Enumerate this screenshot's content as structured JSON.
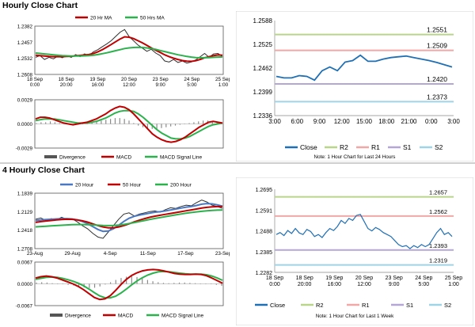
{
  "sections": [
    {
      "title": "Hourly Close Chart"
    },
    {
      "title": "4 Hourly Close Chart"
    }
  ],
  "colors": {
    "price": "#2f2f2f",
    "ma_red": "#c00000",
    "ma_green": "#2bb24c",
    "ma_blue": "#4a78c2",
    "close": "#1f6fb5",
    "r2": "#b8d58a",
    "r1": "#f2a7a7",
    "s1": "#b4a7d6",
    "s2": "#9fd3e6",
    "hist": "#8a8a8a"
  },
  "chart_data": [
    {
      "id": "hourly_price",
      "type": "line",
      "legend": [
        "20 Hr MA",
        "50 Hrs MA"
      ],
      "x_ticks": [
        [
          "18 Sep",
          "0:00"
        ],
        [
          "18 Sep",
          "20:00"
        ],
        [
          "19 Sep",
          "16:00"
        ],
        [
          "20 Sep",
          "12:00"
        ],
        [
          "23 Sep",
          "9:00"
        ],
        [
          "24 Sep",
          "5:00"
        ],
        [
          "25 Sep",
          "1:00"
        ]
      ],
      "y_ticks": [
        "1.2608",
        "1.2532",
        "1.2457",
        "1.2382"
      ],
      "ylim": [
        1.2382,
        1.2608
      ],
      "series": [
        {
          "name": "price",
          "values": [
            1.2462,
            1.247,
            1.2452,
            1.2462,
            1.2455,
            1.2468,
            1.246,
            1.247,
            1.2462,
            1.2475,
            1.2465,
            1.2478,
            1.247,
            1.2488,
            1.2498,
            1.2512,
            1.2525,
            1.254,
            1.256,
            1.258,
            1.2592,
            1.256,
            1.254,
            1.252,
            1.2505,
            1.249,
            1.25,
            1.2482,
            1.247,
            1.2445,
            1.244,
            1.2452,
            1.2438,
            1.2445,
            1.2435,
            1.244,
            1.245,
            1.2465,
            1.248,
            1.2462,
            1.2478,
            1.248,
            1.2465
          ]
        },
        {
          "name": "20 Hr MA",
          "values": [
            1.2472,
            1.247,
            1.2468,
            1.2466,
            1.2465,
            1.2465,
            1.2465,
            1.2466,
            1.2467,
            1.2469,
            1.2471,
            1.2473,
            1.2475,
            1.248,
            1.2488,
            1.2498,
            1.251,
            1.2522,
            1.2535,
            1.2548,
            1.2558,
            1.2556,
            1.255,
            1.254,
            1.253,
            1.2518,
            1.2506,
            1.2495,
            1.2485,
            1.2474,
            1.2465,
            1.2458,
            1.2452,
            1.2447,
            1.2444,
            1.2443,
            1.2446,
            1.2452,
            1.246,
            1.2465,
            1.247,
            1.2473,
            1.2472
          ]
        },
        {
          "name": "50 Hrs MA",
          "values": [
            1.2482,
            1.248,
            1.2478,
            1.2476,
            1.2474,
            1.2472,
            1.247,
            1.2469,
            1.2468,
            1.2468,
            1.2468,
            1.2469,
            1.247,
            1.2472,
            1.2475,
            1.2479,
            1.2483,
            1.2488,
            1.2493,
            1.2498,
            1.2503,
            1.2506,
            1.2508,
            1.2509,
            1.2508,
            1.2506,
            1.2503,
            1.2499,
            1.2494,
            1.2489,
            1.2484,
            1.2479,
            1.2474,
            1.247,
            1.2466,
            1.2463,
            1.2461,
            1.246,
            1.246,
            1.2461,
            1.2462,
            1.2463,
            1.2464
          ]
        }
      ]
    },
    {
      "id": "hourly_macd",
      "type": "line",
      "legend": [
        "Divergence",
        "MACD",
        "MACD Signal Line"
      ],
      "y_ticks": [
        "0.0029",
        "0.0000",
        "-0.0029"
      ],
      "ylim": [
        -0.0029,
        0.0029
      ],
      "histogram": [
        0.0001,
        0.0002,
        0.0002,
        0.0003,
        0.0002,
        0.0001,
        0.0001,
        0.0,
        -0.0001,
        -0.0001,
        0.0,
        0.0001,
        0.0002,
        0.0003,
        0.0004,
        0.0005,
        0.0006,
        0.0007,
        0.0007,
        0.0006,
        0.0004,
        0.0001,
        -0.0002,
        -0.0004,
        -0.0005,
        -0.0006,
        -0.0006,
        -0.0005,
        -0.0004,
        -0.0003,
        -0.0002,
        -0.0001,
        0.0,
        0.0001,
        0.0002,
        0.0003,
        0.0004,
        0.0004,
        0.0003,
        0.0002,
        0.0001
      ],
      "series": [
        {
          "name": "MACD",
          "values": [
            0.0006,
            0.0008,
            0.0008,
            0.0007,
            0.0005,
            0.0003,
            0.0001,
            0.0,
            -0.0001,
            0.0,
            0.0001,
            0.0002,
            0.0004,
            0.0006,
            0.0009,
            0.0012,
            0.0016,
            0.0019,
            0.0021,
            0.002,
            0.0017,
            0.0012,
            0.0006,
            0.0,
            -0.0006,
            -0.0012,
            -0.0016,
            -0.0019,
            -0.0021,
            -0.0022,
            -0.0021,
            -0.0019,
            -0.0016,
            -0.0012,
            -0.0008,
            -0.0004,
            -0.0001,
            0.0002,
            0.0003,
            0.0002,
            0.0001
          ]
        },
        {
          "name": "MACD Signal Line",
          "values": [
            0.0004,
            0.0005,
            0.0006,
            0.0006,
            0.0006,
            0.0005,
            0.0004,
            0.0003,
            0.0002,
            0.0001,
            0.0001,
            0.0001,
            0.0002,
            0.0003,
            0.0005,
            0.0007,
            0.001,
            0.0013,
            0.0015,
            0.0016,
            0.0016,
            0.0015,
            0.0012,
            0.0008,
            0.0003,
            -0.0002,
            -0.0007,
            -0.0011,
            -0.0014,
            -0.0017,
            -0.0018,
            -0.0018,
            -0.0017,
            -0.0015,
            -0.0012,
            -0.0009,
            -0.0006,
            -0.0003,
            -0.0001,
            0.0,
            0.0001
          ]
        }
      ]
    },
    {
      "id": "hourly_levels",
      "type": "line",
      "x_ticks": [
        "3:00",
        "6:00",
        "9:00",
        "12:00",
        "15:00",
        "18:00",
        "21:00",
        "0:00",
        "3:00"
      ],
      "y_ticks": [
        "1.2588",
        "1.2525",
        "1.2462",
        "1.2399",
        "1.2336"
      ],
      "ylim": [
        1.2336,
        1.2588
      ],
      "levels": [
        {
          "name": "R2",
          "value": 1.2551,
          "label": "1.2551"
        },
        {
          "name": "R1",
          "value": 1.2509,
          "label": "1.2509"
        },
        {
          "name": "S1",
          "value": 1.242,
          "label": "1.2420"
        },
        {
          "name": "S2",
          "value": 1.2373,
          "label": "1.2373"
        }
      ],
      "series": [
        {
          "name": "Close",
          "values": [
            1.244,
            1.2436,
            1.2436,
            1.2442,
            1.244,
            1.243,
            1.2455,
            1.2465,
            1.2455,
            1.2478,
            1.2482,
            1.2496,
            1.248,
            1.248,
            1.2486,
            1.249,
            1.2492,
            1.2494,
            1.249,
            1.2486,
            1.2482,
            1.2477,
            1.2471,
            1.2465
          ]
        }
      ],
      "legend": [
        "Close",
        "R2",
        "R1",
        "S1",
        "S2"
      ],
      "note": "Note: 1 Hour Chart for Last 24 Hours"
    },
    {
      "id": "four_hourly_price",
      "type": "line",
      "legend": [
        "20 Hour",
        "50 Hour",
        "200 Hour"
      ],
      "x_ticks": [
        "23-Aug",
        "29-Aug",
        "4-Sep",
        "11-Sep",
        "17-Sep",
        "23-Sep"
      ],
      "y_ticks": [
        "1.2708",
        "1.2418",
        "1.2129",
        "1.1839"
      ],
      "ylim": [
        1.1839,
        1.2708
      ],
      "series": [
        {
          "name": "price",
          "values": [
            1.23,
            1.232,
            1.228,
            1.231,
            1.229,
            1.233,
            1.23,
            1.231,
            1.226,
            1.22,
            1.215,
            1.208,
            1.202,
            1.2,
            1.21,
            1.22,
            1.23,
            1.238,
            1.24,
            1.235,
            1.238,
            1.24,
            1.242,
            1.243,
            1.241,
            1.245,
            1.248,
            1.247,
            1.25,
            1.252,
            1.251,
            1.256,
            1.26,
            1.257,
            1.252,
            1.25,
            1.247
          ]
        },
        {
          "name": "20 Hour",
          "values": [
            1.228,
            1.229,
            1.2295,
            1.23,
            1.2305,
            1.231,
            1.231,
            1.2305,
            1.229,
            1.2265,
            1.223,
            1.2185,
            1.214,
            1.211,
            1.2115,
            1.215,
            1.2205,
            1.2265,
            1.2315,
            1.2345,
            1.2365,
            1.238,
            1.2395,
            1.241,
            1.2418,
            1.243,
            1.2445,
            1.246,
            1.2475,
            1.249,
            1.25,
            1.2515,
            1.2535,
            1.2545,
            1.254,
            1.2525,
            1.2505
          ]
        },
        {
          "name": "50 Hour",
          "values": [
            1.225,
            1.2262,
            1.2272,
            1.228,
            1.2288,
            1.2296,
            1.23,
            1.2298,
            1.229,
            1.2275,
            1.2255,
            1.2228,
            1.22,
            1.2178,
            1.2165,
            1.2165,
            1.2178,
            1.22,
            1.2228,
            1.2258,
            1.2285,
            1.231,
            1.233,
            1.2348,
            1.2362,
            1.2376,
            1.239,
            1.2404,
            1.2418,
            1.2432,
            1.2446,
            1.246,
            1.2474,
            1.2486,
            1.2494,
            1.2498,
            1.2498
          ]
        },
        {
          "name": "200 Hour",
          "values": [
            1.218,
            1.2185,
            1.219,
            1.2195,
            1.22,
            1.2205,
            1.221,
            1.2214,
            1.2216,
            1.2216,
            1.2214,
            1.221,
            1.2206,
            1.2202,
            1.22,
            1.2202,
            1.2208,
            1.2218,
            1.2232,
            1.2248,
            1.2264,
            1.228,
            1.2296,
            1.2312,
            1.2326,
            1.234,
            1.2354,
            1.2368,
            1.2382,
            1.2394,
            1.2405,
            1.2415,
            1.2424,
            1.2432,
            1.2438,
            1.2442,
            1.2444
          ]
        }
      ]
    },
    {
      "id": "four_hourly_macd",
      "type": "line",
      "legend": [
        "Divergence",
        "MACD",
        "MACD Signal Line"
      ],
      "y_ticks": [
        "0.0067",
        "0.0000",
        "-0.0067"
      ],
      "ylim": [
        -0.0067,
        0.0067
      ],
      "histogram": [
        0.0004,
        0.0005,
        0.0004,
        0.0002,
        0.0001,
        -0.0001,
        -0.0003,
        -0.0005,
        -0.0008,
        -0.0011,
        -0.0013,
        -0.0012,
        -0.0008,
        -0.0002,
        0.0005,
        0.0012,
        0.0018,
        0.0022,
        0.0023,
        0.0021,
        0.0017,
        0.0012,
        0.0008,
        0.0005,
        0.0003,
        0.0002,
        0.0003,
        0.0004,
        0.0004,
        0.0003,
        0.0002,
        0.0001,
        0.0,
        -0.0001,
        -0.0003,
        -0.0006
      ],
      "series": [
        {
          "name": "MACD",
          "values": [
            0.0018,
            0.0022,
            0.0024,
            0.0022,
            0.0018,
            0.0012,
            0.0006,
            0.0,
            -0.0008,
            -0.0018,
            -0.003,
            -0.0042,
            -0.0048,
            -0.0046,
            -0.0036,
            -0.002,
            -0.0002,
            0.0014,
            0.0026,
            0.0034,
            0.004,
            0.0043,
            0.0044,
            0.0043,
            0.004,
            0.0036,
            0.0032,
            0.003,
            0.0029,
            0.0029,
            0.003,
            0.0029,
            0.0025,
            0.0018,
            0.001,
            0.0002
          ]
        },
        {
          "name": "MACD Signal Line",
          "values": [
            0.0014,
            0.0017,
            0.002,
            0.0021,
            0.002,
            0.0017,
            0.0013,
            0.0008,
            0.0002,
            -0.0006,
            -0.0016,
            -0.0027,
            -0.0037,
            -0.0043,
            -0.0043,
            -0.0038,
            -0.0028,
            -0.0016,
            -0.0003,
            0.0009,
            0.0019,
            0.0027,
            0.0033,
            0.0037,
            0.0038,
            0.0037,
            0.0035,
            0.0033,
            0.0031,
            0.003,
            0.003,
            0.003,
            0.0028,
            0.0024,
            0.0018,
            0.0011
          ]
        }
      ]
    },
    {
      "id": "four_hourly_levels",
      "type": "line",
      "x_ticks": [
        [
          "18 Sep",
          "0:00"
        ],
        [
          "18 Sep",
          "20:00"
        ],
        [
          "19 Sep",
          "16:00"
        ],
        [
          "20 Sep",
          "12:00"
        ],
        [
          "23 Sep",
          "9:00"
        ],
        [
          "24 Sep",
          "5:00"
        ],
        [
          "25 Sep",
          "1:00"
        ]
      ],
      "y_ticks": [
        "1.2695",
        "1.2591",
        "1.2488",
        "1.2385",
        "1.2282"
      ],
      "ylim": [
        1.2282,
        1.2695
      ],
      "levels": [
        {
          "name": "R2",
          "value": 1.2657,
          "label": "1.2657"
        },
        {
          "name": "R1",
          "value": 1.2562,
          "label": "1.2562"
        },
        {
          "name": "S1",
          "value": 1.2393,
          "label": "1.2393"
        },
        {
          "name": "S2",
          "value": 1.2319,
          "label": "1.2319"
        }
      ],
      "series": [
        {
          "name": "Close",
          "values": [
            1.247,
            1.248,
            1.2465,
            1.249,
            1.2475,
            1.25,
            1.2478,
            1.247,
            1.2495,
            1.2485,
            1.246,
            1.247,
            1.2455,
            1.248,
            1.25,
            1.249,
            1.251,
            1.254,
            1.2525,
            1.255,
            1.254,
            1.2565,
            1.257,
            1.2535,
            1.25,
            1.2488,
            1.2505,
            1.2495,
            1.248,
            1.247,
            1.246,
            1.244,
            1.242,
            1.241,
            1.2415,
            1.24,
            1.2415,
            1.2405,
            1.242,
            1.241,
            1.242,
            1.245,
            1.248,
            1.25,
            1.247,
            1.248,
            1.246
          ]
        }
      ],
      "legend": [
        "Close",
        "R2",
        "R1",
        "S1",
        "S2"
      ],
      "note": "Note: 1 Hour Chart for Last 1 Week"
    }
  ]
}
